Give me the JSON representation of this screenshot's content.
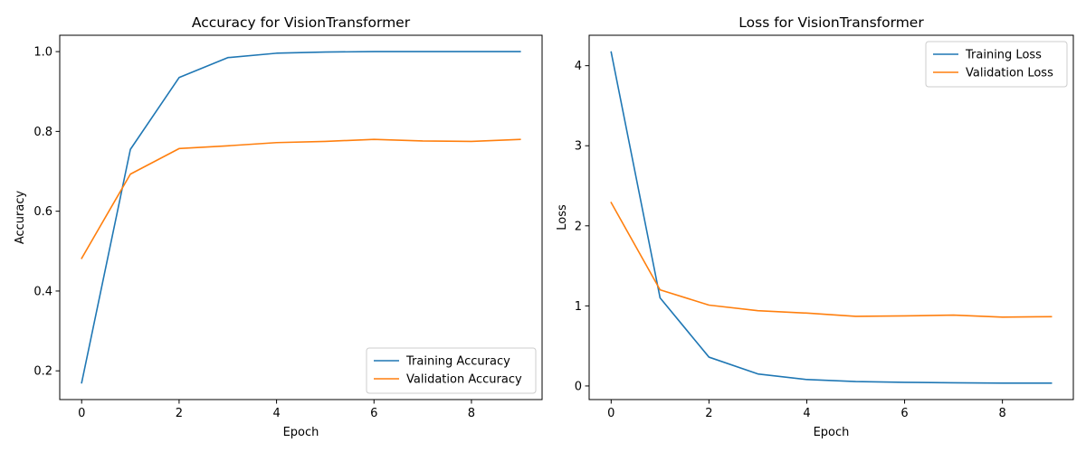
{
  "chart_data": [
    {
      "type": "line",
      "title": "Accuracy for VisionTransformer",
      "xlabel": "Epoch",
      "ylabel": "Accuracy",
      "xlim": [
        -0.45,
        9.45
      ],
      "ylim": [
        0.128,
        1.041
      ],
      "xticks": [
        0,
        2,
        4,
        6,
        8
      ],
      "yticks": [
        0.2,
        0.4,
        0.6,
        0.8,
        1.0
      ],
      "ytick_labels": [
        "0.2",
        "0.4",
        "0.6",
        "0.8",
        "1.0"
      ],
      "grid": false,
      "legend_position": "lower right",
      "x": [
        0,
        1,
        2,
        3,
        4,
        5,
        6,
        7,
        8,
        9
      ],
      "series": [
        {
          "name": "Training Accuracy",
          "color": "#1f77b4",
          "values": [
            0.17,
            0.755,
            0.935,
            0.985,
            0.996,
            0.999,
            1.0,
            1.0,
            1.0,
            1.0
          ]
        },
        {
          "name": "Validation Accuracy",
          "color": "#ff7f0e",
          "values": [
            0.482,
            0.693,
            0.757,
            0.764,
            0.772,
            0.775,
            0.78,
            0.776,
            0.775,
            0.78
          ]
        }
      ]
    },
    {
      "type": "line",
      "title": "Loss for VisionTransformer",
      "xlabel": "Epoch",
      "ylabel": "Loss",
      "xlim": [
        -0.45,
        9.45
      ],
      "ylim": [
        -0.17,
        4.38
      ],
      "xticks": [
        0,
        2,
        4,
        6,
        8
      ],
      "yticks": [
        0,
        1,
        2,
        3,
        4
      ],
      "ytick_labels": [
        "0",
        "1",
        "2",
        "3",
        "4"
      ],
      "grid": false,
      "legend_position": "upper right",
      "x": [
        0,
        1,
        2,
        3,
        4,
        5,
        6,
        7,
        8,
        9
      ],
      "series": [
        {
          "name": "Training Loss",
          "color": "#1f77b4",
          "values": [
            4.17,
            1.1,
            0.36,
            0.15,
            0.08,
            0.055,
            0.045,
            0.04,
            0.035,
            0.035
          ]
        },
        {
          "name": "Validation Loss",
          "color": "#ff7f0e",
          "values": [
            2.29,
            1.2,
            1.01,
            0.94,
            0.91,
            0.87,
            0.875,
            0.885,
            0.86,
            0.865
          ]
        }
      ]
    }
  ]
}
